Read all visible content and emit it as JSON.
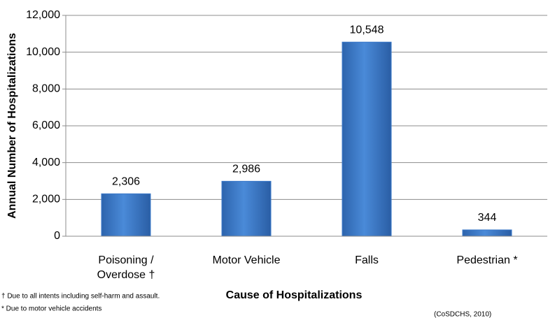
{
  "chart_data": {
    "type": "bar",
    "y_label": "Annual Number of Hospitalizations",
    "x_label": "Cause of Hospitalizations",
    "categories": [
      "Poisoning / Overdose †",
      "Motor Vehicle",
      "Falls",
      "Pedestrian *"
    ],
    "values": [
      2306,
      2986,
      10548,
      344
    ],
    "value_labels": [
      "2,306",
      "2,986",
      "10,548",
      "344"
    ],
    "color": "#3a78c9",
    "ylim": [
      0,
      12000
    ],
    "yticks": [
      0,
      {
        "value": 2000,
        "label": "2,000"
      },
      {
        "value": 4000,
        "label": "4,000"
      },
      {
        "value": 6000,
        "label": "6,000"
      },
      {
        "value": 8000,
        "label": "8,000"
      },
      {
        "value": 10000,
        "label": "10,000"
      },
      {
        "value": 12000,
        "label": "12,000"
      }
    ],
    "grid": true,
    "footnotes": [
      "† Due to all intents including self-harm and assault.",
      "* Due to motor vehicle accidents"
    ],
    "source": "(CoSDCHS, 2010)"
  }
}
